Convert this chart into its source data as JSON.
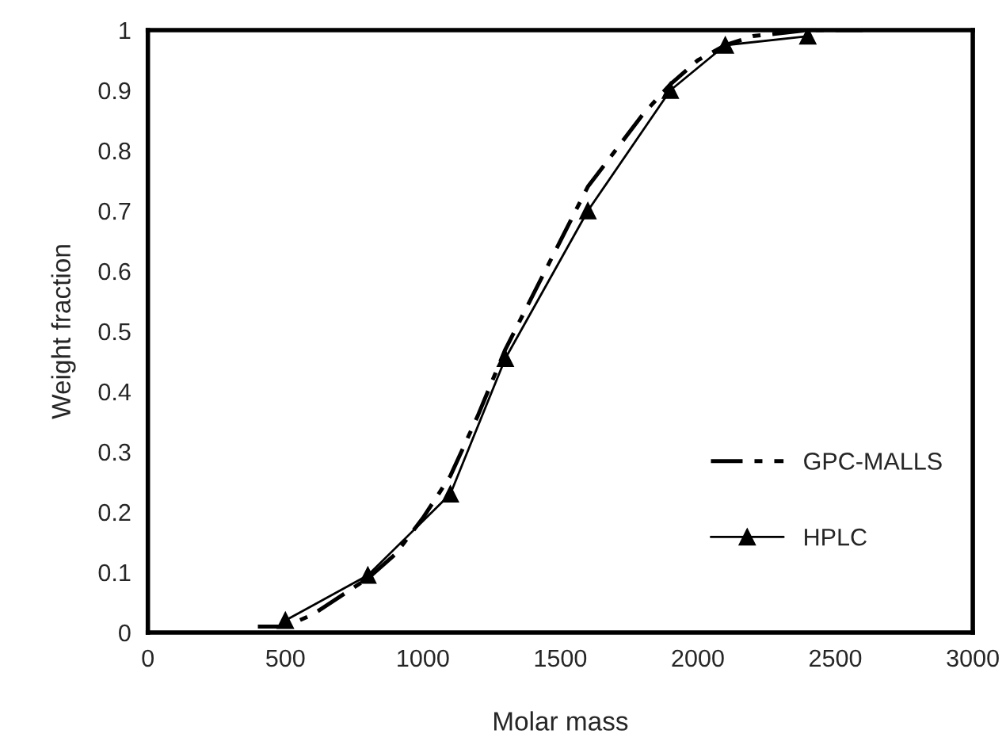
{
  "chart_data": {
    "type": "line",
    "xlabel": "Molar mass",
    "ylabel": "Weight fraction",
    "xlim": [
      0,
      3000
    ],
    "xticks": [
      0,
      500,
      1000,
      1500,
      2000,
      2500,
      3000
    ],
    "ylim": [
      0,
      1
    ],
    "yticks": [
      0,
      0.1,
      0.2,
      0.3,
      0.4,
      0.5,
      0.6,
      0.7,
      0.8,
      0.9,
      1
    ],
    "grid": false,
    "legend": "bottom right",
    "series": [
      {
        "name": "GPC-MALLS",
        "color": "#000000",
        "line_style": "dashed",
        "marker": "none",
        "x": [
          400,
          500,
          600,
          700,
          800,
          900,
          1000,
          1100,
          1200,
          1300,
          1400,
          1500,
          1600,
          1700,
          1800,
          1900,
          2000,
          2100,
          2200,
          2400,
          2600
        ],
        "values": [
          0.01,
          0.01,
          0.03,
          0.06,
          0.09,
          0.13,
          0.19,
          0.26,
          0.36,
          0.47,
          0.56,
          0.65,
          0.74,
          0.8,
          0.86,
          0.91,
          0.95,
          0.975,
          0.99,
          1.0,
          1.0
        ]
      },
      {
        "name": "HPLC",
        "color": "#000000",
        "line_style": "solid",
        "marker": "triangle",
        "x": [
          500,
          800,
          1100,
          1300,
          1600,
          1900,
          2100,
          2400
        ],
        "values": [
          0.02,
          0.095,
          0.23,
          0.455,
          0.7,
          0.9,
          0.975,
          0.99
        ]
      }
    ]
  }
}
